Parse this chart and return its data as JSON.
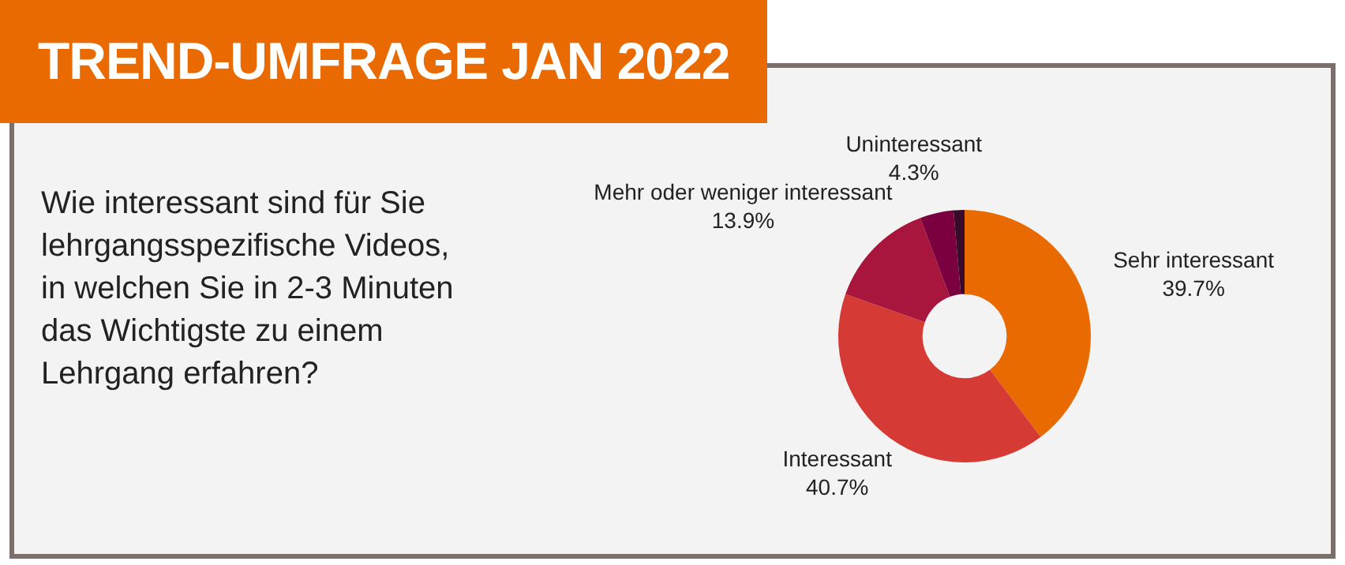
{
  "chart_data": {
    "type": "donut",
    "title": "TREND-UMFRAGE JAN 2022",
    "subtitle": "Wie interessant sind für Sie lehrgangsspezifische Videos, in welchen Sie in 2-3 Minuten das Wichtigste zu einem Lehrgang erfahren?",
    "categories": [
      "Sehr interessant",
      "Interessant",
      "Mehr oder weniger interessant",
      "Uninteressant",
      null
    ],
    "values": [
      39.7,
      40.7,
      13.9,
      4.3,
      1.4
    ],
    "colors": [
      "#e86a00",
      "#d63a35",
      "#a8163e",
      "#7a0040",
      "#3a0a2a"
    ],
    "value_labels": [
      "39.7%",
      "40.7%",
      "13.9%",
      "4.3%",
      null
    ],
    "legend": false
  }
}
